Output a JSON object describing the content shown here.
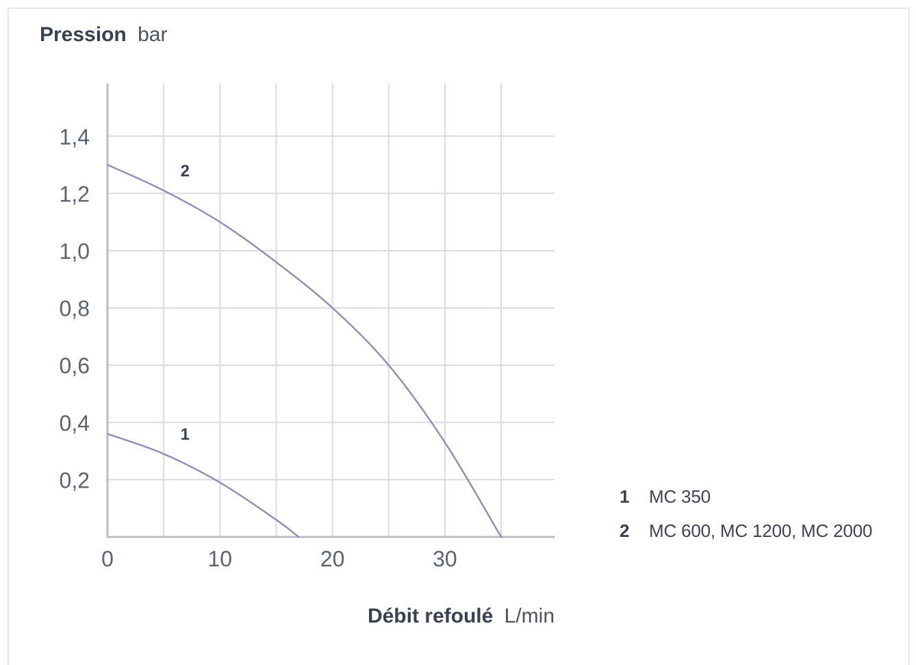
{
  "y_title": {
    "bold": "Pression",
    "unit": "bar"
  },
  "x_title": {
    "bold": "Débit refoulé",
    "unit": "L/min"
  },
  "legend": [
    {
      "num": "1",
      "label": "MC 350"
    },
    {
      "num": "2",
      "label": "MC 600, MC 1200, MC 2000"
    }
  ],
  "chart_data": {
    "type": "line",
    "xlabel": "Débit refoulé L/min",
    "ylabel": "Pression bar",
    "xlim": [
      0,
      40
    ],
    "ylim": [
      0,
      1.6
    ],
    "x_ticks": [
      0,
      10,
      20,
      30
    ],
    "x_tick_labels": [
      "0",
      "10",
      "20",
      "30"
    ],
    "y_ticks": [
      0.2,
      0.4,
      0.6,
      0.8,
      1.0,
      1.2,
      1.4
    ],
    "y_tick_labels": [
      "0,2",
      "0,4",
      "0,6",
      "0,8",
      "1,0",
      "1,2",
      "1,4"
    ],
    "x_grid": [
      0,
      5,
      10,
      15,
      20,
      25,
      30,
      35
    ],
    "y_grid": [
      0.2,
      0.4,
      0.6,
      0.8,
      1.0,
      1.2,
      1.4
    ],
    "grid": true,
    "line_color": "#8e91b5",
    "grid_color": "#d9dbe0",
    "axis_color": "#b9bdc6",
    "text_color": "#394150",
    "tick_color": "#5b6270",
    "series": [
      {
        "label": "1",
        "x": [
          0,
          5,
          10,
          15,
          17
        ],
        "y": [
          0.36,
          0.29,
          0.19,
          0.06,
          0.0
        ]
      },
      {
        "label": "2",
        "x": [
          0,
          5,
          10,
          15,
          20,
          25,
          30,
          35
        ],
        "y": [
          1.3,
          1.21,
          1.1,
          0.96,
          0.8,
          0.6,
          0.33,
          0.0
        ]
      }
    ],
    "curve_labels": [
      {
        "text": "2",
        "series": 1,
        "x": 6.9,
        "y": 1.26
      },
      {
        "text": "1",
        "series": 0,
        "x": 6.9,
        "y": 0.34
      }
    ]
  }
}
